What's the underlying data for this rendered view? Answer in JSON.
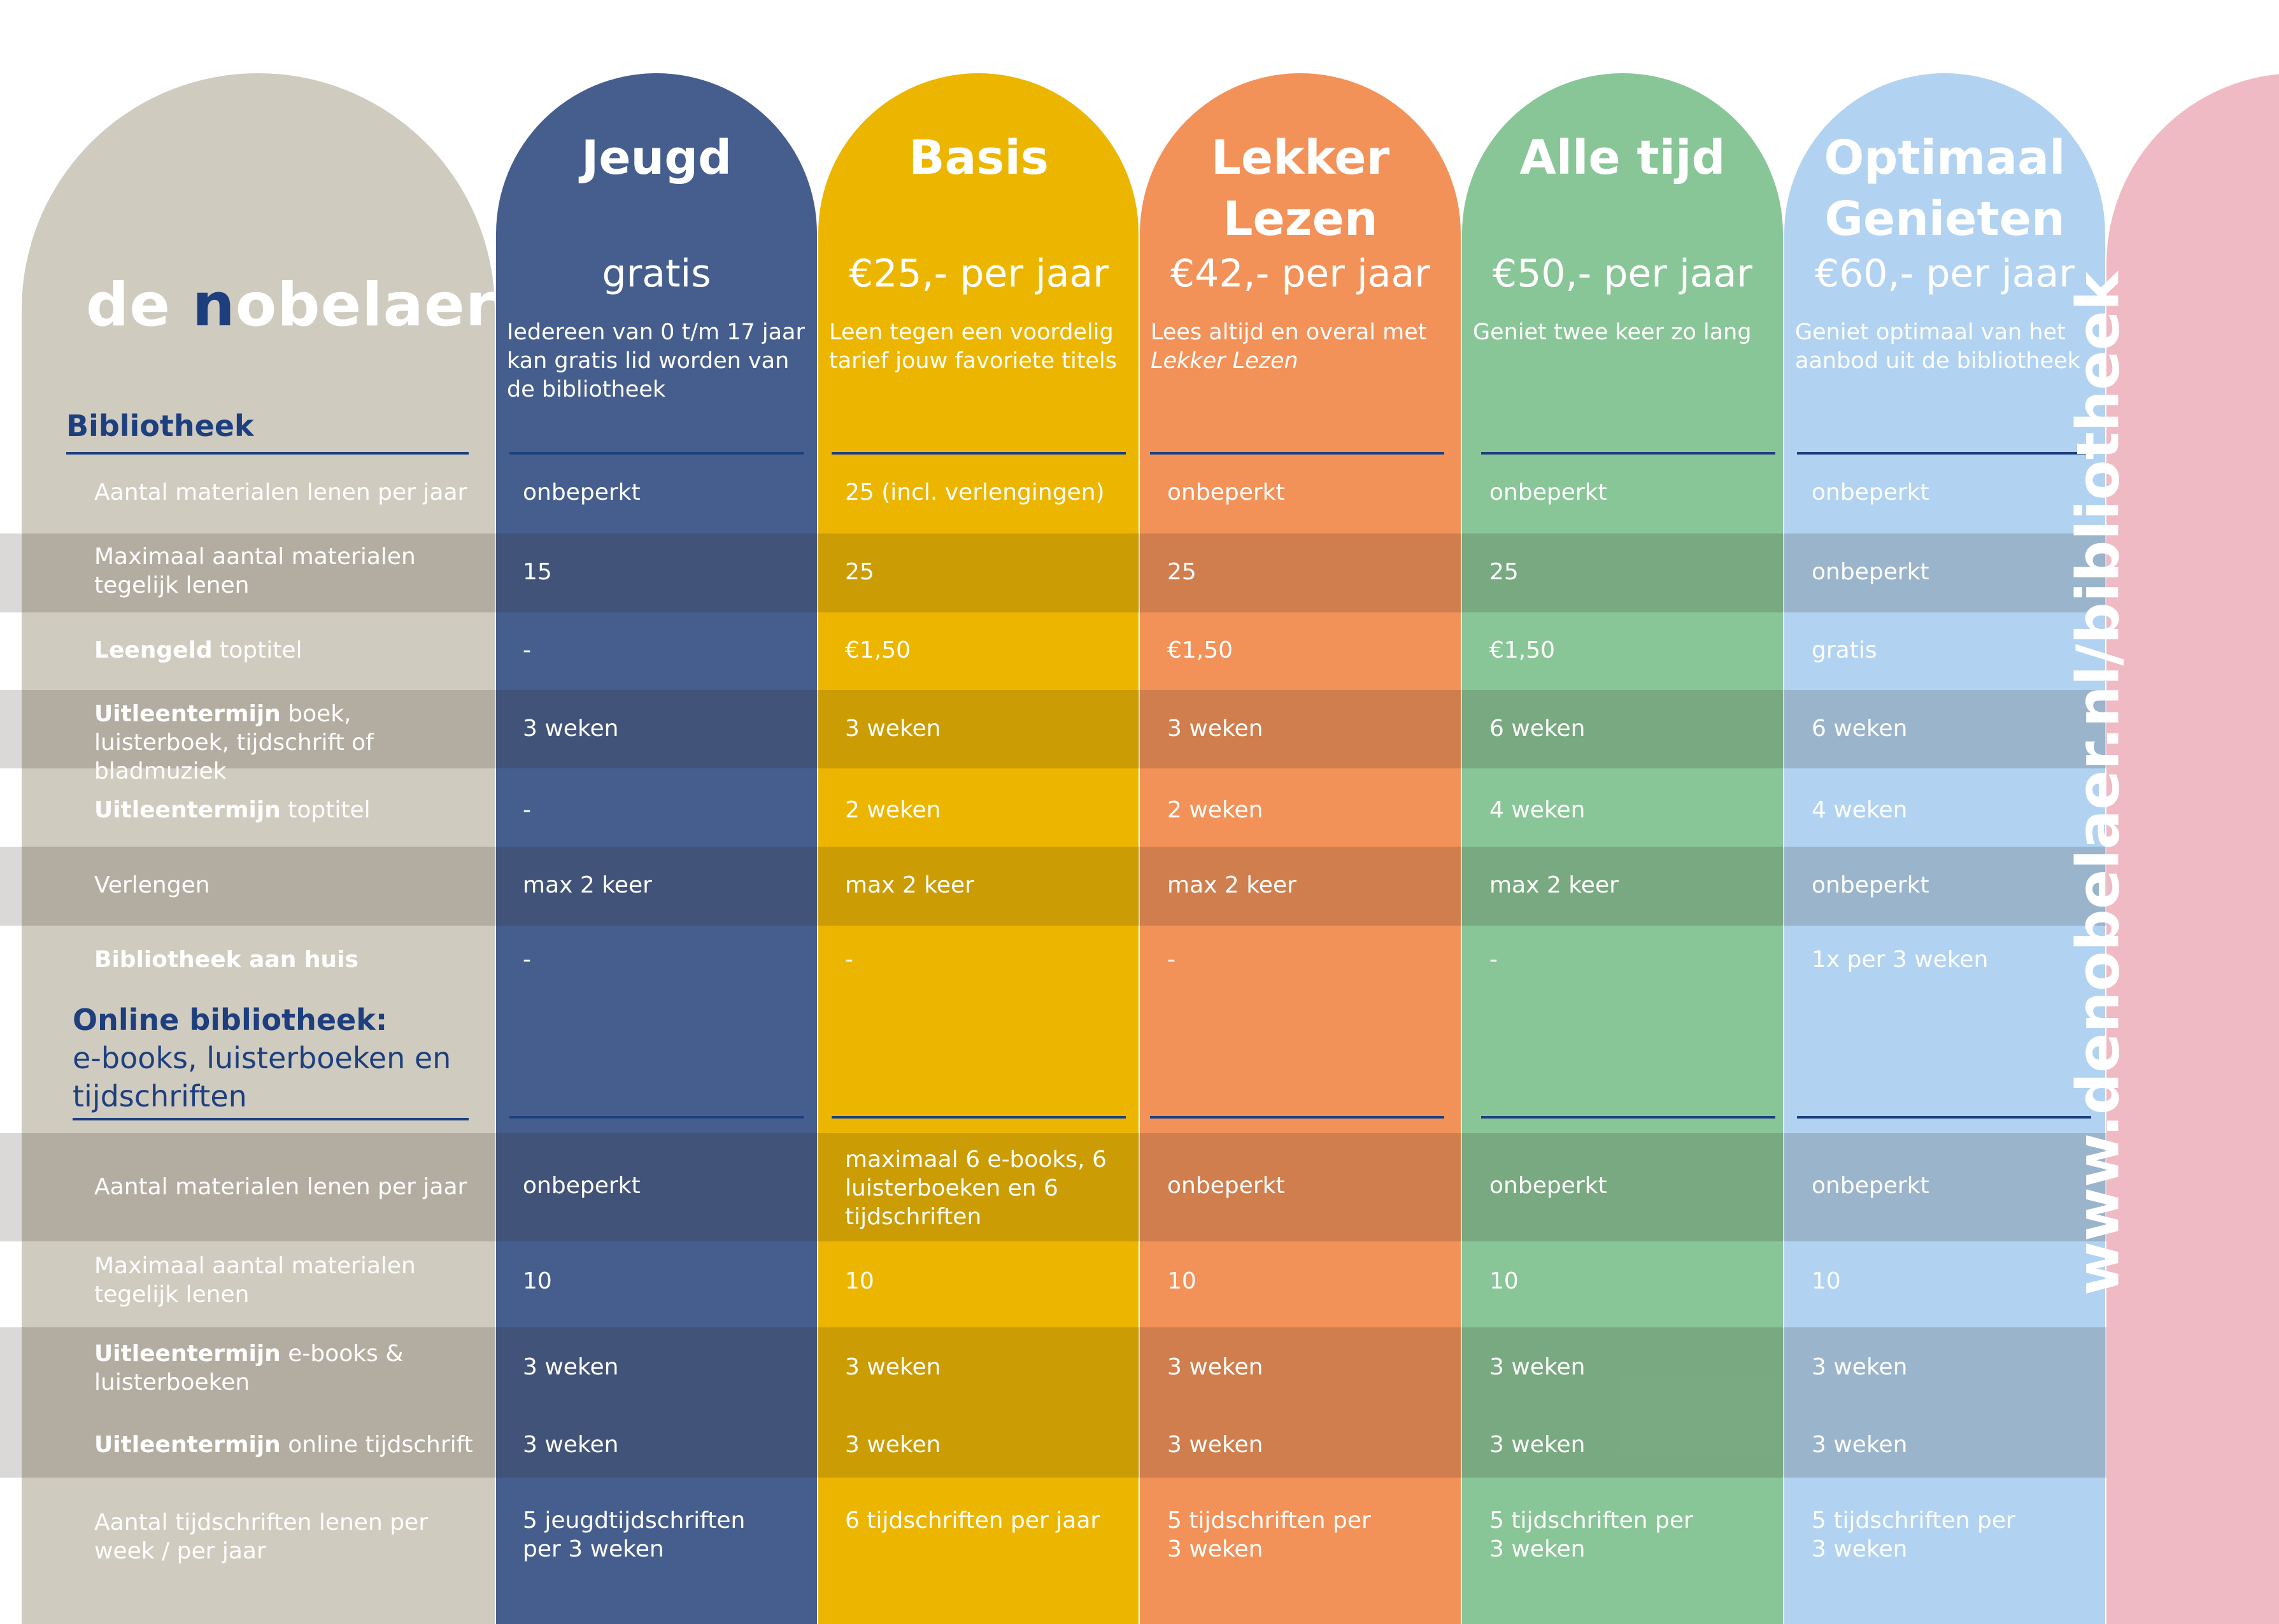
{
  "brand": {
    "logo_part1": "de ",
    "logo_n": "n",
    "logo_part2": "obelaer"
  },
  "plans": [
    {
      "name_line1": "Jeugd",
      "name_line2": "",
      "price": "gratis",
      "desc": "Iedereen van 0 t/m 17 jaar kan gratis lid worden van de bibliotheek",
      "color": "#465e8e"
    },
    {
      "name_line1": "Basis",
      "name_line2": "",
      "price": "€25,- per jaar",
      "desc": "Leen tegen een voordelig tarief jouw favoriete titels",
      "color": "#ecb600"
    },
    {
      "name_line1": "Lekker",
      "name_line2": "Lezen",
      "price": "€42,- per jaar",
      "desc": "Lees altijd en overal met",
      "desc_italic": "Lekker Lezen",
      "color": "#f29259"
    },
    {
      "name_line1": "Alle tijd",
      "name_line2": "",
      "price": "€50,- per jaar",
      "desc": "Geniet twee keer zo lang",
      "color": "#89c697"
    },
    {
      "name_line1": "Optimaal",
      "name_line2": "Genieten",
      "price": "€60,- per jaar",
      "desc": "Geniet optimaal van het aanbod uit de bibliotheek",
      "color": "#b1d3f1"
    }
  ],
  "sections": {
    "library": {
      "title": "Bibliotheek"
    },
    "online": {
      "title_bold": "Online bibliotheek:",
      "title_line2": "e-books, luisterboeken en",
      "title_line3": "tijdschriften"
    }
  },
  "library_rows": [
    {
      "label_bold": "",
      "label": "Aantal materialen lenen per jaar",
      "values": [
        "onbeperkt",
        "25 (incl. verlengingen)",
        "onbeperkt",
        "onbeperkt",
        "onbeperkt"
      ]
    },
    {
      "label_bold": "",
      "label": "Maximaal aantal materialen tegelijk lenen",
      "values": [
        "15",
        "25",
        "25",
        "25",
        "onbeperkt"
      ]
    },
    {
      "label_bold": "Leengeld",
      "label": " toptitel",
      "values": [
        "-",
        "€1,50",
        "€1,50",
        "€1,50",
        "gratis"
      ]
    },
    {
      "label_bold": "Uitleentermijn",
      "label": " boek, luisterboek, tijdschrift of bladmuziek",
      "values": [
        "3 weken",
        "3 weken",
        "3 weken",
        "6 weken",
        "6 weken"
      ]
    },
    {
      "label_bold": "Uitleentermijn",
      "label": " toptitel",
      "values": [
        "-",
        "2 weken",
        "2 weken",
        "4 weken",
        "4 weken"
      ]
    },
    {
      "label_bold": "",
      "label": "Verlengen",
      "values": [
        "max 2 keer",
        "max 2 keer",
        "max 2 keer",
        "max 2 keer",
        "onbeperkt"
      ]
    },
    {
      "label_bold": "Bibliotheek aan huis",
      "label": "",
      "values": [
        "-",
        "-",
        "-",
        "-",
        "1x per 3 weken"
      ]
    }
  ],
  "online_rows": [
    {
      "label_bold": "",
      "label": "Aantal materialen lenen per jaar",
      "values": [
        "onbeperkt",
        "maximaal 6 e-books, 6 luisterboeken en 6 tijdschriften",
        "onbeperkt",
        "onbeperkt",
        "onbeperkt"
      ]
    },
    {
      "label_bold": "",
      "label": "Maximaal aantal materialen tegelijk lenen",
      "values": [
        "10",
        "10",
        "10",
        "10",
        "10"
      ]
    },
    {
      "label_bold": "Uitleentermijn",
      "label": " e-books & luisterboeken",
      "values": [
        "3 weken",
        "3 weken",
        "3 weken",
        "3 weken",
        "3 weken"
      ]
    },
    {
      "label_bold": "Uitleentermijn",
      "label": " online tijdschrift",
      "values": [
        "3 weken",
        "3 weken",
        "3 weken",
        "3 weken",
        "3 weken"
      ]
    },
    {
      "label_bold": "",
      "label": "Aantal tijdschriften lenen per week / per jaar",
      "values": [
        "5 jeugdtijdschriften per 3 weken",
        "6 tijdschriften per jaar",
        "5 tijdschriften per 3 weken",
        "5 tijdschriften per 3 weken",
        "5 tijdschriften per 3 weken"
      ]
    }
  ],
  "url": "www.denobelaer.nl/bibliotheek"
}
